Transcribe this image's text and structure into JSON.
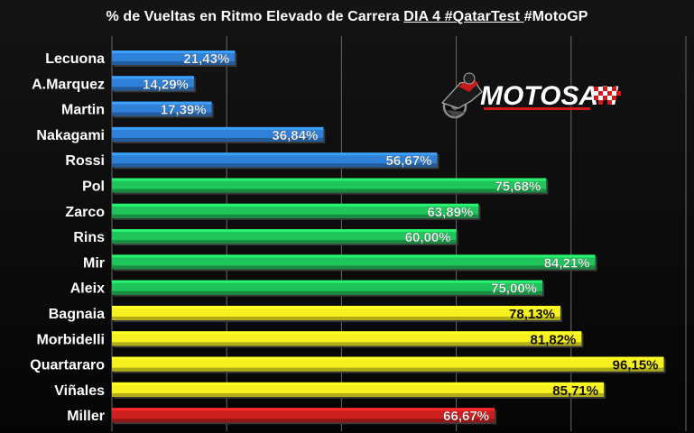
{
  "chart_data": {
    "type": "bar",
    "orientation": "horizontal",
    "title": {
      "part1": "% de Vueltas en Ritmo Elevado de Carrera ",
      "part2": "DIA 4 #QatarTest ",
      "part3": " #MotoGP"
    },
    "xlim": [
      0,
      100
    ],
    "grid": true,
    "categories": [
      "Lecuona",
      "A.Marquez",
      "Martin",
      "Nakagami",
      "Rossi",
      "Pol",
      "Zarco",
      "Rins",
      "Mir",
      "Aleix",
      "Bagnaia",
      "Morbidelli",
      "Quartararo",
      "Viñales",
      "Miller"
    ],
    "values": [
      21.43,
      14.29,
      17.39,
      36.84,
      56.67,
      75.68,
      63.89,
      60.0,
      84.21,
      75.0,
      78.13,
      81.82,
      96.15,
      85.71,
      66.67
    ],
    "data_labels": [
      "21,43%",
      "14,29%",
      "17,39%",
      "36,84%",
      "56,67%",
      "75,68%",
      "63,89%",
      "60,00%",
      "84,21%",
      "75,00%",
      "78,13%",
      "81,82%",
      "96,15%",
      "85,71%",
      "66,67%"
    ],
    "colors": [
      "#2f80d8",
      "#2f80d8",
      "#2f80d8",
      "#2f80d8",
      "#2f80d8",
      "#1fc45a",
      "#1fc45a",
      "#1fc45a",
      "#1fc45a",
      "#1fc45a",
      "#f6f01e",
      "#f6f01e",
      "#f6f01e",
      "#f6f01e",
      "#cc1f1f"
    ]
  },
  "logo": {
    "text": "MOTOSAN",
    "accent": "#d21a1a"
  }
}
